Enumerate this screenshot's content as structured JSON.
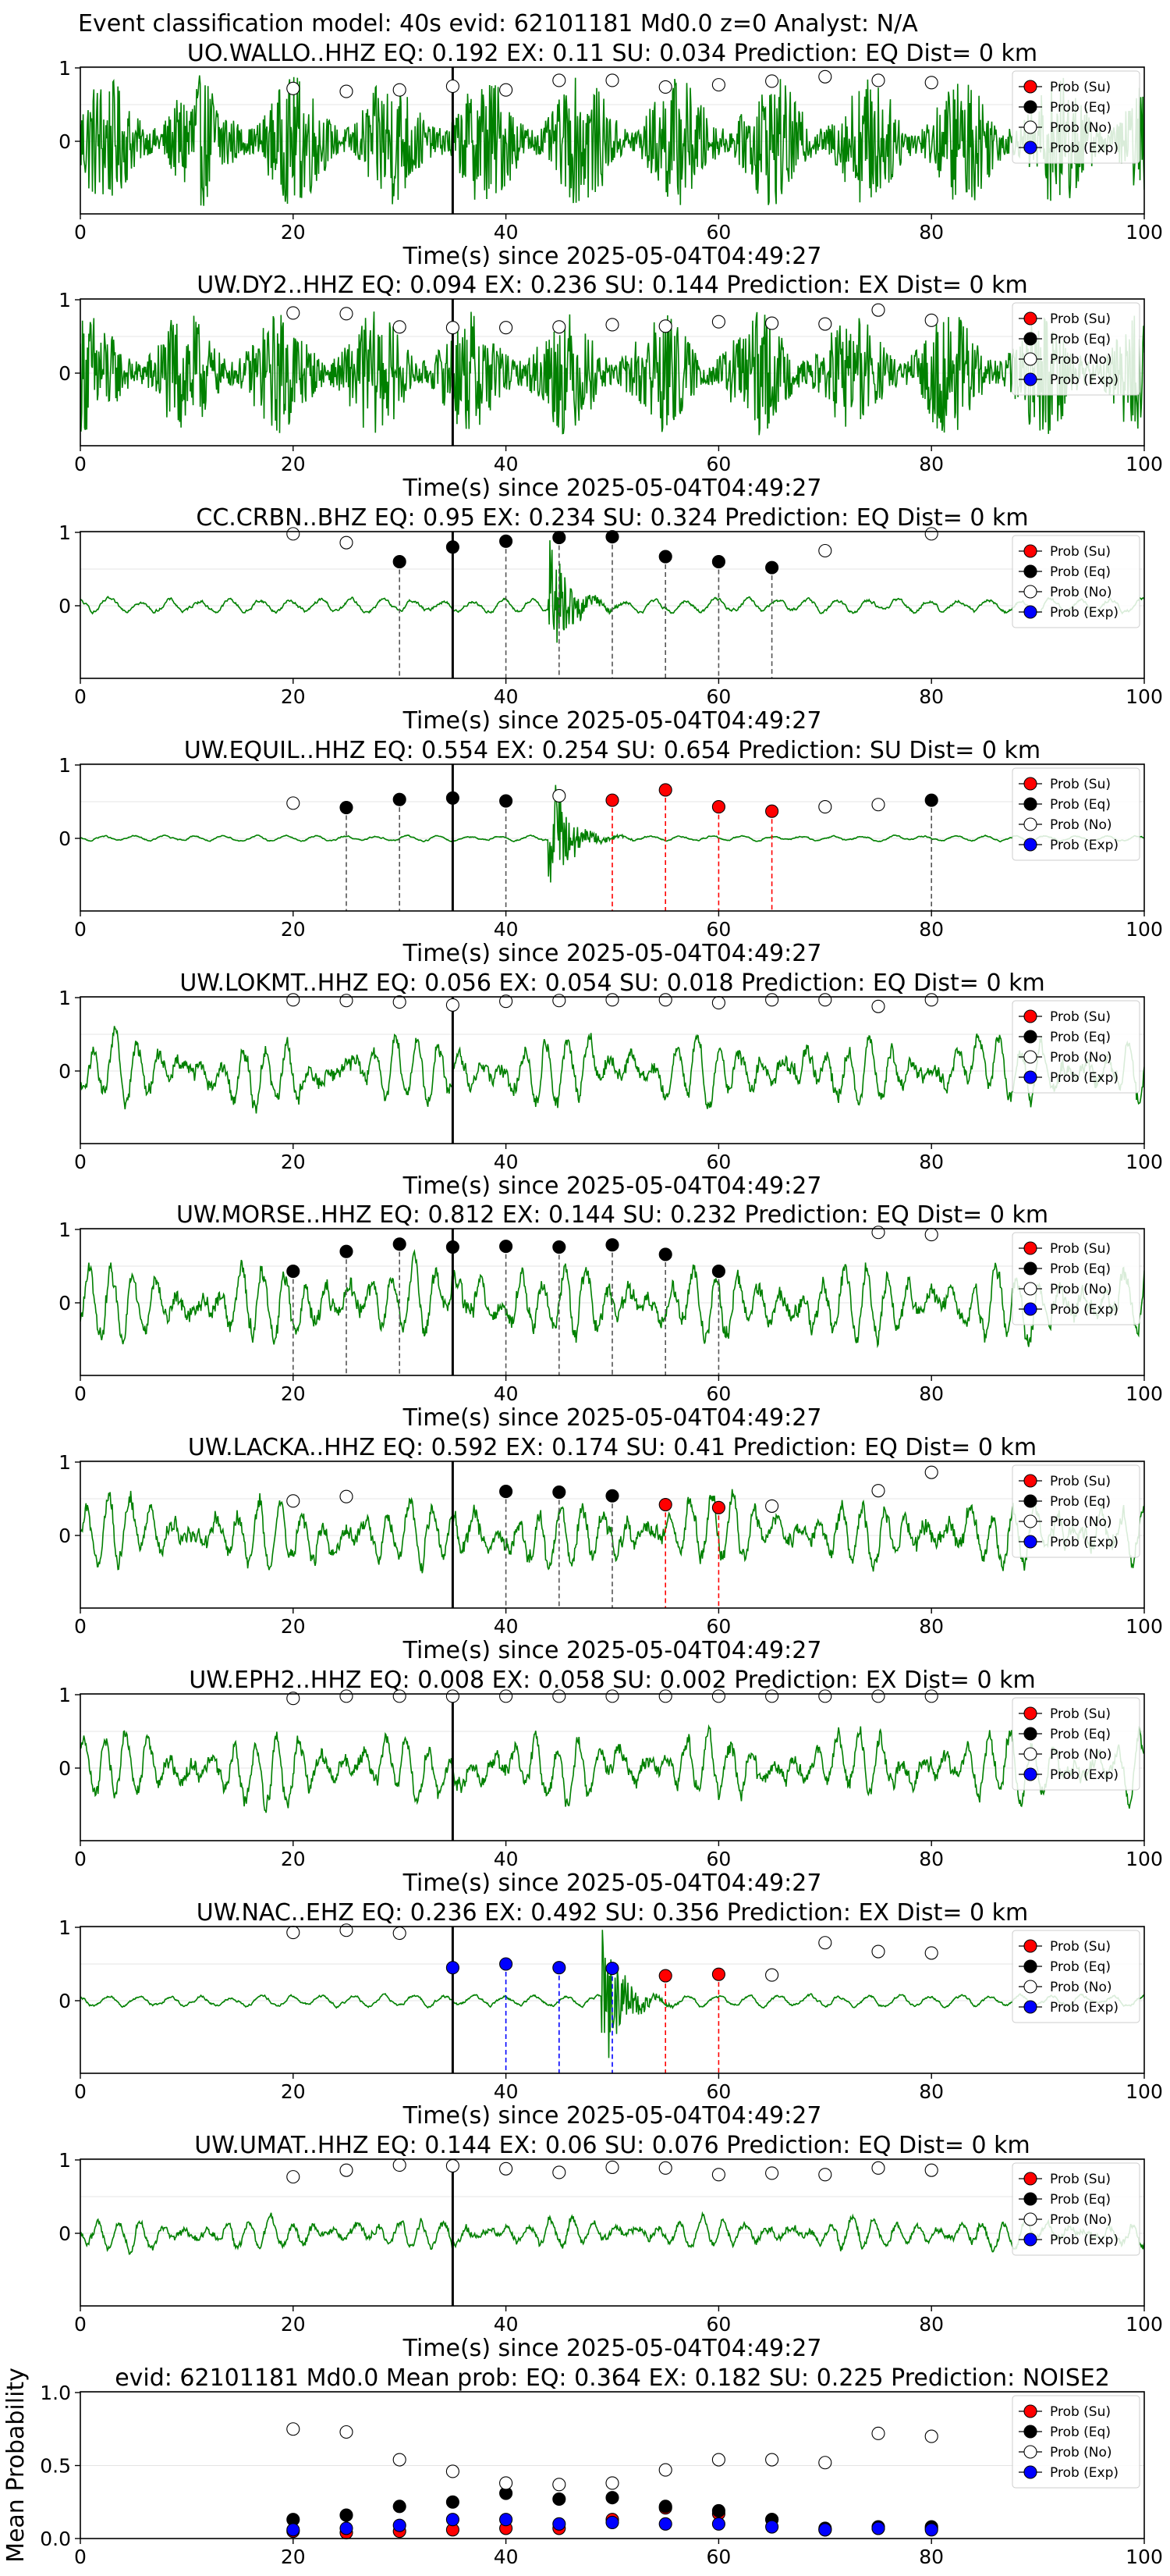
{
  "figure": {
    "suptitle": "Event classification model: 40s evid: 62101181 Md0.0 z=0 Analyst: N/A",
    "trace_color": "#008000",
    "prob_colors": {
      "su": "#ff0000",
      "eq": "#000000",
      "no": "#ffffff",
      "exp": "#0000ff"
    },
    "vline_colors": {
      "su": "#ff0000",
      "eq": "#555555",
      "exp": "#0000ff"
    }
  },
  "legend": {
    "entries": [
      "Prob (Su)",
      "Prob (Eq)",
      "Prob (No)",
      "Prob (Exp)"
    ]
  },
  "chart_data": [
    {
      "type": "line",
      "title": "UO.WALLO..HHZ   EQ: 0.192  EX: 0.11  SU: 0.034   Prediction: EQ    Dist= 0 km",
      "xlabel": "Time(s) since 2025-05-04T04:49:27",
      "xlim": [
        0,
        100
      ],
      "xticks": [
        "0",
        "20",
        "40",
        "60",
        "80",
        "100"
      ],
      "yticks": [
        "1",
        "0"
      ],
      "legend_position": "upper right",
      "waveform": {
        "style": "noise",
        "amplitude": 0.9,
        "onset": null
      },
      "pick_time": 35,
      "markers": [
        {
          "t": 20,
          "p": 0.72,
          "cls": "no"
        },
        {
          "t": 25,
          "p": 0.68,
          "cls": "no"
        },
        {
          "t": 30,
          "p": 0.7,
          "cls": "no"
        },
        {
          "t": 35,
          "p": 0.75,
          "cls": "no"
        },
        {
          "t": 40,
          "p": 0.7,
          "cls": "no"
        },
        {
          "t": 45,
          "p": 0.83,
          "cls": "no"
        },
        {
          "t": 50,
          "p": 0.83,
          "cls": "no"
        },
        {
          "t": 55,
          "p": 0.74,
          "cls": "no"
        },
        {
          "t": 60,
          "p": 0.77,
          "cls": "no"
        },
        {
          "t": 65,
          "p": 0.82,
          "cls": "no"
        },
        {
          "t": 70,
          "p": 0.88,
          "cls": "no"
        },
        {
          "t": 75,
          "p": 0.83,
          "cls": "no"
        },
        {
          "t": 80,
          "p": 0.8,
          "cls": "no"
        }
      ]
    },
    {
      "type": "line",
      "title": "UW.DY2..HHZ   EQ: 0.094  EX: 0.236  SU: 0.144   Prediction: EX    Dist= 0 km",
      "xlabel": "Time(s) since 2025-05-04T04:49:27",
      "xlim": [
        0,
        100
      ],
      "xticks": [
        "0",
        "20",
        "40",
        "60",
        "80",
        "100"
      ],
      "yticks": [
        "1",
        "0"
      ],
      "legend_position": "upper right",
      "waveform": {
        "style": "noise",
        "amplitude": 0.85,
        "onset": null
      },
      "pick_time": 35,
      "markers": [
        {
          "t": 20,
          "p": 0.82,
          "cls": "no"
        },
        {
          "t": 25,
          "p": 0.81,
          "cls": "no"
        },
        {
          "t": 30,
          "p": 0.63,
          "cls": "no"
        },
        {
          "t": 35,
          "p": 0.62,
          "cls": "no"
        },
        {
          "t": 40,
          "p": 0.62,
          "cls": "no"
        },
        {
          "t": 45,
          "p": 0.63,
          "cls": "no"
        },
        {
          "t": 50,
          "p": 0.66,
          "cls": "no"
        },
        {
          "t": 55,
          "p": 0.64,
          "cls": "no"
        },
        {
          "t": 60,
          "p": 0.7,
          "cls": "no"
        },
        {
          "t": 65,
          "p": 0.68,
          "cls": "no"
        },
        {
          "t": 70,
          "p": 0.67,
          "cls": "no"
        },
        {
          "t": 75,
          "p": 0.86,
          "cls": "no"
        },
        {
          "t": 80,
          "p": 0.72,
          "cls": "no"
        }
      ]
    },
    {
      "type": "line",
      "title": "CC.CRBN..BHZ   EQ: 0.95  EX: 0.234  SU: 0.324   Prediction: EQ    Dist= 0 km",
      "xlabel": "Time(s) since 2025-05-04T04:49:27",
      "xlim": [
        0,
        100
      ],
      "xticks": [
        "0",
        "20",
        "40",
        "60",
        "80",
        "100"
      ],
      "yticks": [
        "1",
        "0"
      ],
      "legend_position": "upper right",
      "waveform": {
        "style": "quiet-burst",
        "amplitude": 0.15,
        "onset": 44,
        "burst_amp": 0.95
      },
      "pick_time": 35,
      "markers": [
        {
          "t": 20,
          "p": 0.98,
          "cls": "no"
        },
        {
          "t": 25,
          "p": 0.86,
          "cls": "no"
        },
        {
          "t": 30,
          "p": 0.6,
          "cls": "eq"
        },
        {
          "t": 35,
          "p": 0.8,
          "cls": "eq"
        },
        {
          "t": 40,
          "p": 0.88,
          "cls": "eq"
        },
        {
          "t": 45,
          "p": 0.93,
          "cls": "eq"
        },
        {
          "t": 50,
          "p": 0.94,
          "cls": "eq"
        },
        {
          "t": 55,
          "p": 0.67,
          "cls": "eq"
        },
        {
          "t": 60,
          "p": 0.6,
          "cls": "eq"
        },
        {
          "t": 65,
          "p": 0.52,
          "cls": "eq"
        },
        {
          "t": 70,
          "p": 0.75,
          "cls": "no"
        },
        {
          "t": 80,
          "p": 0.98,
          "cls": "no"
        }
      ]
    },
    {
      "type": "line",
      "title": "UW.EQUIL..HHZ   EQ: 0.554  EX: 0.254  SU: 0.654   Prediction: SU    Dist= 0 km",
      "xlabel": "Time(s) since 2025-05-04T04:49:27",
      "xlim": [
        0,
        100
      ],
      "xticks": [
        "0",
        "20",
        "40",
        "60",
        "80",
        "100"
      ],
      "yticks": [
        "1",
        "0"
      ],
      "legend_position": "upper right",
      "waveform": {
        "style": "quiet-burst",
        "amplitude": 0.06,
        "onset": 44,
        "burst_amp": 0.98
      },
      "pick_time": 35,
      "markers": [
        {
          "t": 20,
          "p": 0.48,
          "cls": "no"
        },
        {
          "t": 25,
          "p": 0.42,
          "cls": "eq"
        },
        {
          "t": 30,
          "p": 0.53,
          "cls": "eq"
        },
        {
          "t": 35,
          "p": 0.55,
          "cls": "eq"
        },
        {
          "t": 40,
          "p": 0.51,
          "cls": "eq"
        },
        {
          "t": 45,
          "p": 0.58,
          "cls": "no"
        },
        {
          "t": 50,
          "p": 0.52,
          "cls": "su"
        },
        {
          "t": 55,
          "p": 0.66,
          "cls": "su"
        },
        {
          "t": 60,
          "p": 0.43,
          "cls": "su"
        },
        {
          "t": 65,
          "p": 0.37,
          "cls": "su"
        },
        {
          "t": 70,
          "p": 0.43,
          "cls": "no"
        },
        {
          "t": 75,
          "p": 0.46,
          "cls": "no"
        },
        {
          "t": 80,
          "p": 0.52,
          "cls": "eq"
        }
      ]
    },
    {
      "type": "line",
      "title": "UW.LOKMT..HHZ   EQ: 0.056  EX: 0.054  SU: 0.018   Prediction: EQ    Dist= 0 km",
      "xlabel": "Time(s) since 2025-05-04T04:49:27",
      "xlim": [
        0,
        100
      ],
      "xticks": [
        "0",
        "20",
        "40",
        "60",
        "80",
        "100"
      ],
      "yticks": [
        "1",
        "0"
      ],
      "legend_position": "upper right",
      "waveform": {
        "style": "wavy",
        "amplitude": 0.75,
        "onset": null
      },
      "pick_time": 35,
      "markers": [
        {
          "t": 20,
          "p": 0.97,
          "cls": "no"
        },
        {
          "t": 25,
          "p": 0.96,
          "cls": "no"
        },
        {
          "t": 30,
          "p": 0.94,
          "cls": "no"
        },
        {
          "t": 35,
          "p": 0.9,
          "cls": "no"
        },
        {
          "t": 40,
          "p": 0.95,
          "cls": "no"
        },
        {
          "t": 45,
          "p": 0.96,
          "cls": "no"
        },
        {
          "t": 50,
          "p": 0.97,
          "cls": "no"
        },
        {
          "t": 55,
          "p": 0.97,
          "cls": "no"
        },
        {
          "t": 60,
          "p": 0.93,
          "cls": "no"
        },
        {
          "t": 65,
          "p": 0.97,
          "cls": "no"
        },
        {
          "t": 70,
          "p": 0.97,
          "cls": "no"
        },
        {
          "t": 75,
          "p": 0.88,
          "cls": "no"
        },
        {
          "t": 80,
          "p": 0.97,
          "cls": "no"
        }
      ]
    },
    {
      "type": "line",
      "title": "UW.MORSE..HHZ   EQ: 0.812  EX: 0.144  SU: 0.232   Prediction: EQ    Dist= 0 km",
      "xlabel": "Time(s) since 2025-05-04T04:49:27",
      "xlim": [
        0,
        100
      ],
      "xticks": [
        "0",
        "20",
        "40",
        "60",
        "80",
        "100"
      ],
      "yticks": [
        "1",
        "0"
      ],
      "legend_position": "upper right",
      "waveform": {
        "style": "wavy",
        "amplitude": 0.85,
        "onset": null
      },
      "pick_time": 35,
      "markers": [
        {
          "t": 20,
          "p": 0.43,
          "cls": "eq"
        },
        {
          "t": 25,
          "p": 0.7,
          "cls": "eq"
        },
        {
          "t": 30,
          "p": 0.8,
          "cls": "eq"
        },
        {
          "t": 35,
          "p": 0.76,
          "cls": "eq"
        },
        {
          "t": 40,
          "p": 0.77,
          "cls": "eq"
        },
        {
          "t": 45,
          "p": 0.76,
          "cls": "eq"
        },
        {
          "t": 50,
          "p": 0.79,
          "cls": "eq"
        },
        {
          "t": 55,
          "p": 0.66,
          "cls": "eq"
        },
        {
          "t": 60,
          "p": 0.43,
          "cls": "eq"
        },
        {
          "t": 75,
          "p": 0.96,
          "cls": "no"
        },
        {
          "t": 80,
          "p": 0.93,
          "cls": "no"
        }
      ]
    },
    {
      "type": "line",
      "title": "UW.LACKA..HHZ   EQ: 0.592  EX: 0.174  SU: 0.41   Prediction: EQ    Dist= 0 km",
      "xlabel": "Time(s) since 2025-05-04T04:49:27",
      "xlim": [
        0,
        100
      ],
      "xticks": [
        "0",
        "20",
        "40",
        "60",
        "80",
        "100"
      ],
      "yticks": [
        "1",
        "0"
      ],
      "legend_position": "upper right",
      "waveform": {
        "style": "wavy",
        "amplitude": 0.8,
        "onset": null
      },
      "pick_time": 35,
      "markers": [
        {
          "t": 20,
          "p": 0.47,
          "cls": "no"
        },
        {
          "t": 25,
          "p": 0.53,
          "cls": "no"
        },
        {
          "t": 40,
          "p": 0.6,
          "cls": "eq"
        },
        {
          "t": 45,
          "p": 0.59,
          "cls": "eq"
        },
        {
          "t": 50,
          "p": 0.54,
          "cls": "eq"
        },
        {
          "t": 55,
          "p": 0.42,
          "cls": "su"
        },
        {
          "t": 60,
          "p": 0.38,
          "cls": "su"
        },
        {
          "t": 65,
          "p": 0.4,
          "cls": "no"
        },
        {
          "t": 75,
          "p": 0.61,
          "cls": "no"
        },
        {
          "t": 80,
          "p": 0.86,
          "cls": "no"
        }
      ]
    },
    {
      "type": "line",
      "title": "UW.EPH2..HHZ   EQ: 0.008  EX: 0.058  SU: 0.002   Prediction: EX    Dist= 0 km",
      "xlabel": "Time(s) since 2025-05-04T04:49:27",
      "xlim": [
        0,
        100
      ],
      "xticks": [
        "0",
        "20",
        "40",
        "60",
        "80",
        "100"
      ],
      "yticks": [
        "1",
        "0"
      ],
      "legend_position": "upper right",
      "waveform": {
        "style": "wavy",
        "amplitude": 0.75,
        "onset": null
      },
      "pick_time": 35,
      "markers": [
        {
          "t": 20,
          "p": 0.95,
          "cls": "no"
        },
        {
          "t": 25,
          "p": 0.98,
          "cls": "no"
        },
        {
          "t": 30,
          "p": 0.98,
          "cls": "no"
        },
        {
          "t": 35,
          "p": 0.98,
          "cls": "no"
        },
        {
          "t": 40,
          "p": 0.98,
          "cls": "no"
        },
        {
          "t": 45,
          "p": 0.98,
          "cls": "no"
        },
        {
          "t": 50,
          "p": 0.98,
          "cls": "no"
        },
        {
          "t": 55,
          "p": 0.98,
          "cls": "no"
        },
        {
          "t": 60,
          "p": 0.98,
          "cls": "no"
        },
        {
          "t": 65,
          "p": 0.98,
          "cls": "no"
        },
        {
          "t": 70,
          "p": 0.98,
          "cls": "no"
        },
        {
          "t": 75,
          "p": 0.98,
          "cls": "no"
        },
        {
          "t": 80,
          "p": 0.98,
          "cls": "no"
        }
      ]
    },
    {
      "type": "line",
      "title": "UW.NAC..EHZ   EQ: 0.236  EX: 0.492  SU: 0.356   Prediction: EX    Dist= 0 km",
      "xlabel": "Time(s) since 2025-05-04T04:49:27",
      "xlim": [
        0,
        100
      ],
      "xticks": [
        "0",
        "20",
        "40",
        "60",
        "80",
        "100"
      ],
      "yticks": [
        "1",
        "0"
      ],
      "legend_position": "upper right",
      "waveform": {
        "style": "quiet-burst",
        "amplitude": 0.12,
        "onset": 49,
        "burst_amp": 0.98
      },
      "pick_time": 35,
      "markers": [
        {
          "t": 20,
          "p": 0.93,
          "cls": "no"
        },
        {
          "t": 25,
          "p": 0.96,
          "cls": "no"
        },
        {
          "t": 30,
          "p": 0.92,
          "cls": "no"
        },
        {
          "t": 35,
          "p": 0.45,
          "cls": "exp"
        },
        {
          "t": 40,
          "p": 0.5,
          "cls": "exp"
        },
        {
          "t": 45,
          "p": 0.45,
          "cls": "exp"
        },
        {
          "t": 50,
          "p": 0.44,
          "cls": "exp"
        },
        {
          "t": 55,
          "p": 0.34,
          "cls": "su"
        },
        {
          "t": 60,
          "p": 0.36,
          "cls": "su"
        },
        {
          "t": 65,
          "p": 0.35,
          "cls": "no"
        },
        {
          "t": 70,
          "p": 0.79,
          "cls": "no"
        },
        {
          "t": 75,
          "p": 0.67,
          "cls": "no"
        },
        {
          "t": 80,
          "p": 0.65,
          "cls": "no"
        }
      ]
    },
    {
      "type": "line",
      "title": "UW.UMAT..HHZ   EQ: 0.144  EX: 0.06  SU: 0.076   Prediction: EQ    Dist= 0 km",
      "xlabel": "Time(s) since 2025-05-04T04:49:27",
      "xlim": [
        0,
        100
      ],
      "xticks": [
        "0",
        "20",
        "40",
        "60",
        "80",
        "100"
      ],
      "yticks": [
        "1",
        "0"
      ],
      "legend_position": "upper right",
      "waveform": {
        "style": "wavy",
        "amplitude": 0.35,
        "onset": null
      },
      "pick_time": 35,
      "markers": [
        {
          "t": 20,
          "p": 0.77,
          "cls": "no"
        },
        {
          "t": 25,
          "p": 0.86,
          "cls": "no"
        },
        {
          "t": 30,
          "p": 0.93,
          "cls": "no"
        },
        {
          "t": 35,
          "p": 0.92,
          "cls": "no"
        },
        {
          "t": 40,
          "p": 0.88,
          "cls": "no"
        },
        {
          "t": 45,
          "p": 0.83,
          "cls": "no"
        },
        {
          "t": 50,
          "p": 0.9,
          "cls": "no"
        },
        {
          "t": 55,
          "p": 0.89,
          "cls": "no"
        },
        {
          "t": 60,
          "p": 0.8,
          "cls": "no"
        },
        {
          "t": 65,
          "p": 0.82,
          "cls": "no"
        },
        {
          "t": 70,
          "p": 0.8,
          "cls": "no"
        },
        {
          "t": 75,
          "p": 0.89,
          "cls": "no"
        },
        {
          "t": 80,
          "p": 0.86,
          "cls": "no"
        }
      ]
    },
    {
      "type": "scatter",
      "title": "evid: 62101181  Md0.0   Mean prob:   EQ: 0.364  EX: 0.182  SU: 0.225   Prediction: NOISE2",
      "ylabel": "Mean Probability",
      "xlim": [
        0,
        100
      ],
      "ylim": [
        0,
        1
      ],
      "xticks": [
        "0",
        "20",
        "40",
        "60",
        "80",
        "100"
      ],
      "yticks": [
        "1.0",
        "0.5",
        "0.0"
      ],
      "legend_position": "upper right",
      "x": [
        20,
        25,
        30,
        35,
        40,
        45,
        50,
        55,
        60,
        65,
        70,
        75,
        80
      ],
      "series": [
        {
          "name": "Prob (Su)",
          "cls": "su",
          "values": [
            0.05,
            0.04,
            0.05,
            0.06,
            0.07,
            0.07,
            0.13,
            0.21,
            0.17,
            0.13,
            0.06,
            0.07,
            0.07
          ]
        },
        {
          "name": "Prob (Eq)",
          "cls": "eq",
          "values": [
            0.13,
            0.16,
            0.22,
            0.25,
            0.31,
            0.27,
            0.28,
            0.22,
            0.19,
            0.13,
            0.07,
            0.08,
            0.08
          ]
        },
        {
          "name": "Prob (No)",
          "cls": "no",
          "values": [
            0.75,
            0.73,
            0.54,
            0.46,
            0.38,
            0.37,
            0.38,
            0.47,
            0.54,
            0.54,
            0.52,
            0.72,
            0.7
          ]
        },
        {
          "name": "Prob (Exp)",
          "cls": "exp",
          "values": [
            0.06,
            0.07,
            0.09,
            0.13,
            0.13,
            0.1,
            0.11,
            0.1,
            0.1,
            0.08,
            0.06,
            0.07,
            0.06
          ]
        }
      ]
    }
  ]
}
